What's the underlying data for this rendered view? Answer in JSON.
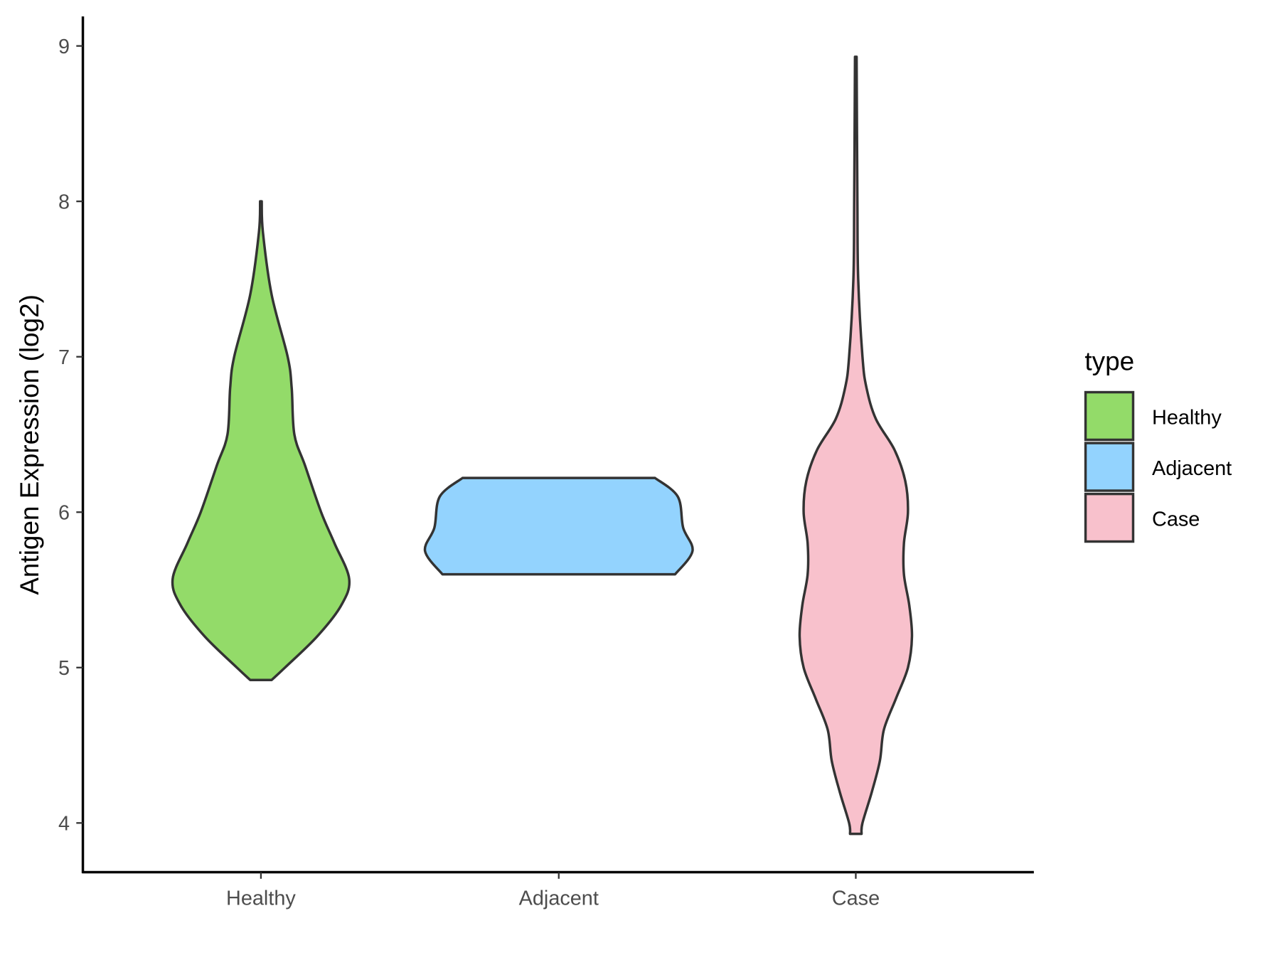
{
  "chart_data": {
    "type": "violin",
    "title": "",
    "xlabel": "",
    "ylabel": "Antigen Expression (log2)",
    "ylim": [
      3.7,
      9.2
    ],
    "yticks": [
      4,
      5,
      6,
      7,
      8,
      9
    ],
    "categories": [
      "Healthy",
      "Adjacent",
      "Case"
    ],
    "grid": false,
    "legend": {
      "title": "type",
      "placement": "right",
      "entries": [
        "Healthy",
        "Adjacent",
        "Case"
      ]
    },
    "outline_color": "#333333",
    "series": [
      {
        "category": "Healthy",
        "color": "#93DB69",
        "density_profile": [
          [
            4.92,
            0.08
          ],
          [
            5.0,
            0.18
          ],
          [
            5.2,
            0.42
          ],
          [
            5.4,
            0.6
          ],
          [
            5.57,
            0.66
          ],
          [
            5.8,
            0.55
          ],
          [
            6.0,
            0.45
          ],
          [
            6.3,
            0.33
          ],
          [
            6.5,
            0.25
          ],
          [
            6.8,
            0.23
          ],
          [
            7.0,
            0.2
          ],
          [
            7.4,
            0.08
          ],
          [
            7.8,
            0.015
          ],
          [
            8.0,
            0.006
          ]
        ]
      },
      {
        "category": "Adjacent",
        "color": "#93D3FE",
        "density_profile": [
          [
            5.6,
            0.87
          ],
          [
            5.75,
            1.0
          ],
          [
            5.9,
            0.93
          ],
          [
            6.1,
            0.89
          ],
          [
            6.22,
            0.72
          ]
        ]
      },
      {
        "category": "Case",
        "color": "#F8C1CC",
        "density_profile": [
          [
            3.93,
            0.043
          ],
          [
            4.0,
            0.05
          ],
          [
            4.2,
            0.12
          ],
          [
            4.4,
            0.18
          ],
          [
            4.6,
            0.21
          ],
          [
            4.8,
            0.3
          ],
          [
            5.0,
            0.39
          ],
          [
            5.2,
            0.42
          ],
          [
            5.4,
            0.4
          ],
          [
            5.6,
            0.36
          ],
          [
            5.8,
            0.36
          ],
          [
            6.0,
            0.39
          ],
          [
            6.2,
            0.37
          ],
          [
            6.4,
            0.29
          ],
          [
            6.6,
            0.15
          ],
          [
            6.8,
            0.08
          ],
          [
            7.0,
            0.05
          ],
          [
            7.5,
            0.018
          ],
          [
            8.0,
            0.012
          ],
          [
            8.93,
            0.006
          ]
        ]
      }
    ]
  }
}
